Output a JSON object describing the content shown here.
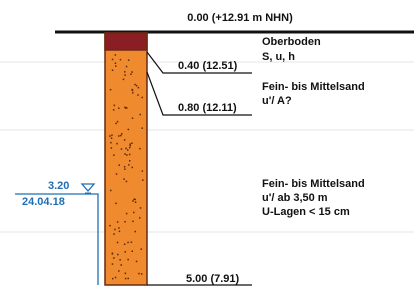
{
  "top_label": "0.00 (+12.91 m NHN)",
  "layers": [
    {
      "depth_label": "0.40 (12.51)",
      "description": [
        "Oberboden",
        "S, u, h"
      ]
    },
    {
      "depth_label": "0.80 (12.11)",
      "description": [
        "Fein- bis Mittelsand",
        "u'/ A?"
      ]
    },
    {
      "depth_label": "5.00 (7.91)",
      "description": [
        "Fein- bis Mittelsand",
        "u'/ ab 3,50 m",
        "U-Lagen < 15 cm"
      ]
    }
  ],
  "water_level": {
    "depth": "3.20",
    "date": "24.04.18"
  }
}
